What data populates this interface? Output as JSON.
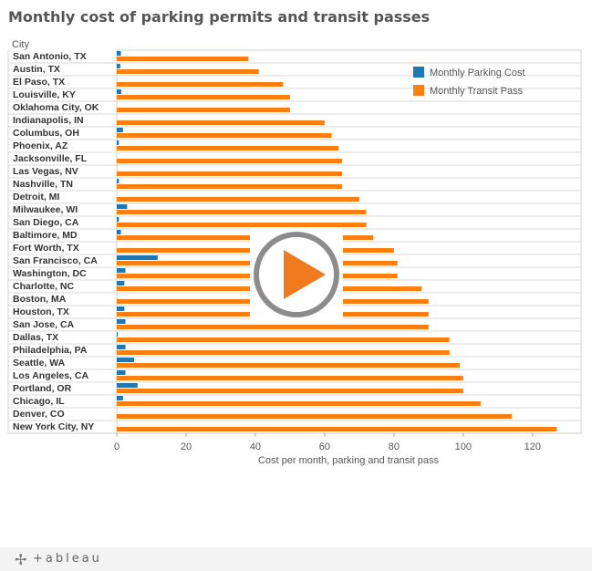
{
  "chart_data": {
    "type": "bar",
    "title": "Monthly cost of parking permits and transit passes",
    "row_header": "City",
    "xlabel": "Cost per month, parking and transit pass",
    "ylabel": "",
    "xlim": [
      0,
      134
    ],
    "xticks": [
      0,
      20,
      40,
      60,
      80,
      100,
      120
    ],
    "legend_position": "top-right",
    "categories": [
      "San Antonio, TX",
      "Austin, TX",
      "El Paso, TX",
      "Louisville, KY",
      "Oklahoma City, OK",
      "Indianapolis, IN",
      "Columbus, OH",
      "Phoenix, AZ",
      "Jacksonville, FL",
      "Las Vegas, NV",
      "Nashville, TN",
      "Detroit, MI",
      "Milwaukee, WI",
      "San Diego, CA",
      "Baltimore, MD",
      "Fort Worth, TX",
      "San Francisco, CA",
      "Washington, DC",
      "Charlotte, NC",
      "Boston, MA",
      "Houston, TX",
      "San Jose, CA",
      "Dallas, TX",
      "Philadelphia, PA",
      "Seattle, WA",
      "Los Angeles, CA",
      "Portland, OR",
      "Chicago, IL",
      "Denver, CO",
      "New York City, NY"
    ],
    "series": [
      {
        "name": "Monthly Parking Cost",
        "color": "#1f77b4",
        "values": [
          1.2,
          1.0,
          0,
          1.3,
          0,
          0,
          1.8,
          0.6,
          0,
          0,
          0.6,
          0,
          3.0,
          0.6,
          1.2,
          0,
          11.8,
          2.5,
          2.2,
          0,
          2.2,
          2.5,
          0.3,
          2.5,
          5.0,
          2.5,
          6.0,
          1.8,
          0,
          0
        ]
      },
      {
        "name": "Monthly Transit Pass",
        "color": "#ff7f0e",
        "values": [
          38,
          41,
          48,
          50,
          50,
          60,
          62,
          64,
          65,
          65,
          65,
          70,
          72,
          72,
          74,
          80,
          81,
          81,
          88,
          90,
          90,
          90,
          96,
          96,
          99,
          100,
          100,
          105,
          114,
          127
        ]
      }
    ]
  }
}
